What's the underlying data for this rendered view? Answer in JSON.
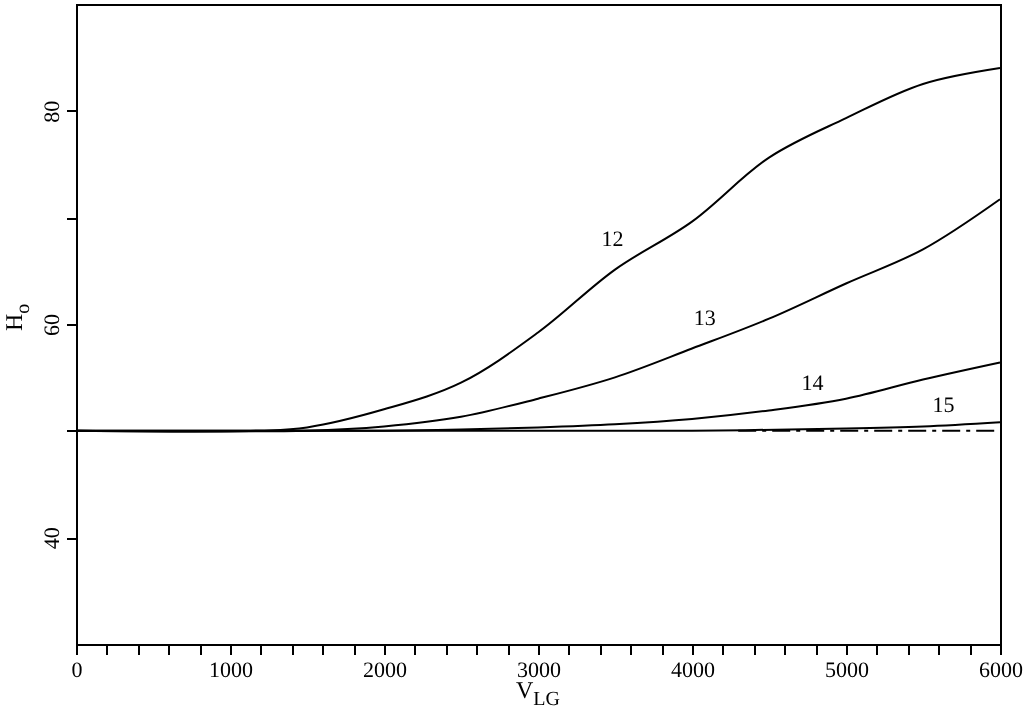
{
  "chart_data": {
    "type": "line",
    "xlabel": "V$_{LG}$",
    "ylabel": "H$_{o}$",
    "xlim": [
      0,
      6000
    ],
    "ylim": [
      30,
      90
    ],
    "xticks": [
      0,
      {
        "value": 200,
        "label": null
      },
      {
        "value": 400,
        "label": null
      },
      {
        "value": 600,
        "label": null
      },
      {
        "value": 800,
        "label": null
      },
      1000,
      {
        "value": 1200,
        "label": null
      },
      {
        "value": 1400,
        "label": null
      },
      {
        "value": 1600,
        "label": null
      },
      {
        "value": 1800,
        "label": null
      },
      2000,
      {
        "value": 2200,
        "label": null
      },
      {
        "value": 2400,
        "label": null
      },
      {
        "value": 2600,
        "label": null
      },
      {
        "value": 2800,
        "label": null
      },
      3000,
      {
        "value": 3200,
        "label": null
      },
      {
        "value": 3400,
        "label": null
      },
      {
        "value": 3600,
        "label": null
      },
      {
        "value": 3800,
        "label": null
      },
      4000,
      {
        "value": 4200,
        "label": null
      },
      {
        "value": 4400,
        "label": null
      },
      {
        "value": 4600,
        "label": null
      },
      {
        "value": 4800,
        "label": null
      },
      5000,
      {
        "value": 5200,
        "label": null
      },
      {
        "value": 5400,
        "label": null
      },
      {
        "value": 5600,
        "label": null
      },
      {
        "value": 5800,
        "label": null
      },
      6000
    ],
    "yticks": [
      40,
      {
        "value": 50,
        "label": null
      },
      60,
      {
        "value": 70,
        "label": null
      },
      80
    ],
    "grid": false,
    "marker": "none",
    "series": [
      {
        "color": "#000000",
        "line_style": "solid",
        "x": [
          0,
          1200,
          1500,
          2000,
          2500,
          3000,
          3500,
          4000,
          4500,
          5000,
          5500,
          6000
        ],
        "values": [
          50,
          50,
          50.3,
          52,
          54.5,
          59.2,
          65.1,
          69.6,
          75.6,
          79.3,
          82.5,
          84
        ]
      },
      {
        "color": "#000000",
        "line_style": "solid",
        "x": [
          0,
          1500,
          2000,
          2500,
          3000,
          3500,
          4000,
          4500,
          5000,
          5500,
          6000
        ],
        "values": [
          50,
          50,
          50.4,
          51.3,
          53,
          55,
          57.7,
          60.5,
          63.8,
          67,
          71.7
        ]
      },
      {
        "color": "#000000",
        "line_style": "solid",
        "x": [
          0,
          2000,
          2500,
          3000,
          3500,
          4000,
          4500,
          5000,
          5500,
          6000
        ],
        "values": [
          50,
          50,
          50.1,
          50.3,
          50.6,
          51.1,
          51.9,
          53,
          54.8,
          56.4
        ]
      },
      {
        "color": "#000000",
        "line_style": "solid",
        "x": [
          0,
          3000,
          4000,
          5000,
          5500,
          6000
        ],
        "values": [
          50,
          50,
          50,
          50.2,
          50.4,
          50.8
        ]
      },
      {
        "color": "#000000",
        "line_style": "dashed",
        "x": [
          4300,
          6000
        ],
        "values": [
          50,
          50
        ]
      }
    ],
    "annotations": [
      {
        "text": "12",
        "x": 3600,
        "y": 66.2
      },
      {
        "text": "13",
        "x": 4200,
        "y": 58.8
      },
      {
        "text": "14",
        "x": 4900,
        "y": 52.7
      },
      {
        "text": "15",
        "x": 5750,
        "y": 50.6
      }
    ]
  }
}
